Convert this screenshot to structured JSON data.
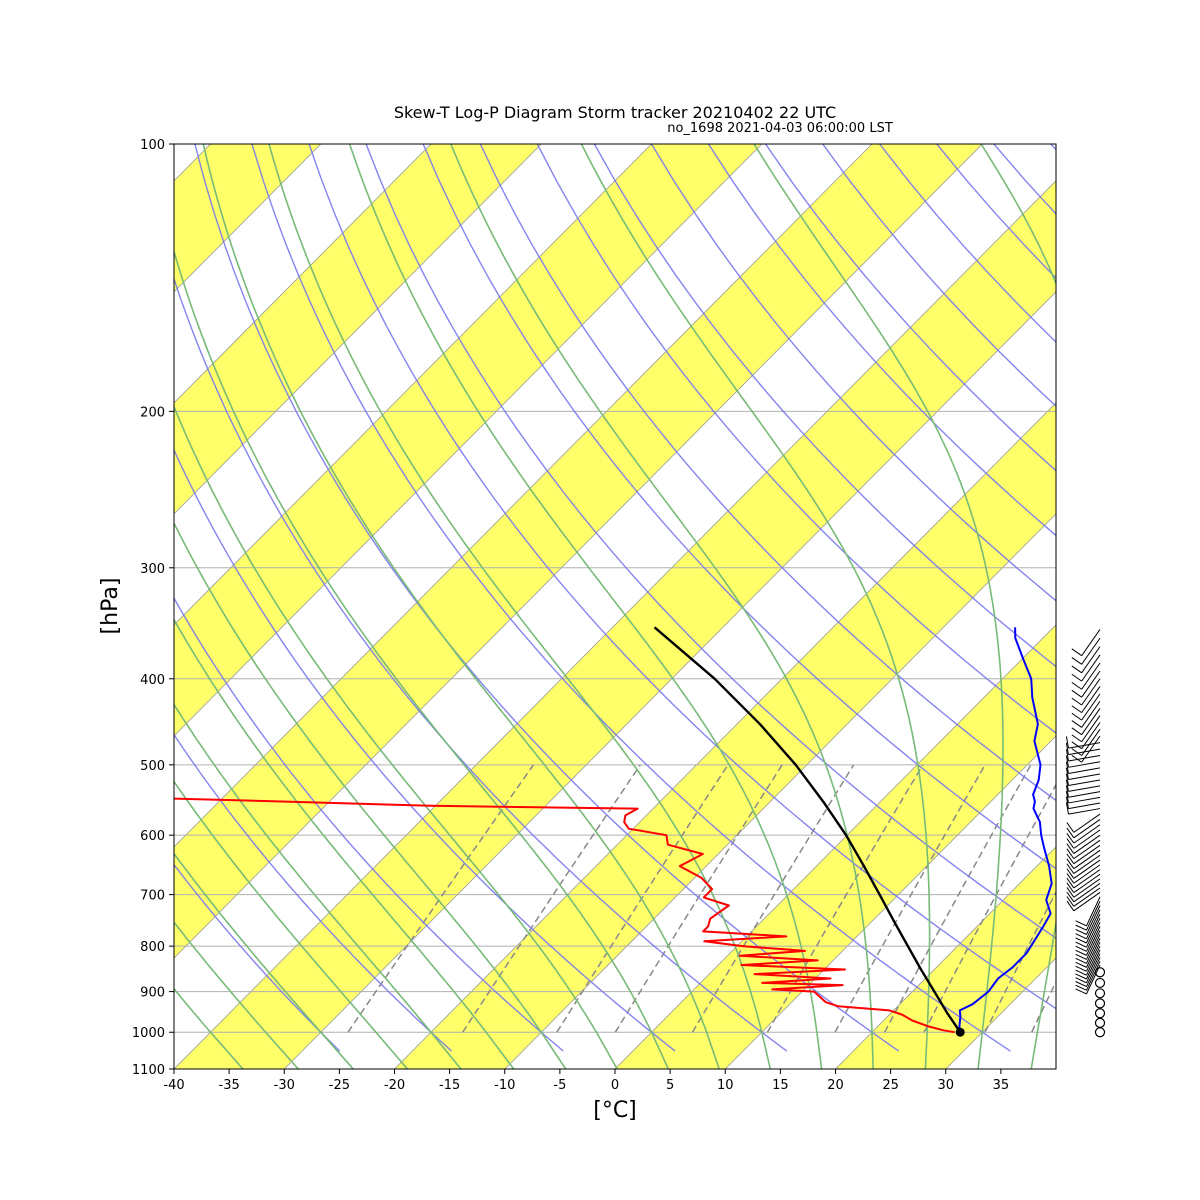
{
  "chart_data": {
    "type": "line",
    "title": "Skew-T Log-P Diagram Storm tracker 20210402 22 UTC",
    "subtitle": "no_1698 2021-04-03 06:00:00 LST",
    "xlabel": "[°C]",
    "ylabel": "[hPa]",
    "xlim": [
      -40,
      40
    ],
    "ylim": [
      1100,
      100
    ],
    "y_scale": "log",
    "skew_degrees_per_log10_pressure": 80,
    "grid": "horizontal at pressure ticks",
    "x_ticks": [
      "-40",
      "-35",
      "-30",
      "-25",
      "-20",
      "-15",
      "-10",
      "-5",
      "0",
      "5",
      "10",
      "15",
      "20",
      "25",
      "30",
      "35"
    ],
    "y_ticks": [
      "100",
      "200",
      "300",
      "400",
      "500",
      "600",
      "700",
      "800",
      "900",
      "1000",
      "1100"
    ],
    "background": {
      "isotherm_bands": "alternating 10 °C yellow shading",
      "dry_adiabats": "blue",
      "moist_adiabats": "green",
      "mixing_ratio_lines": "grey dashed below 500 hPa"
    },
    "colors": {
      "temperature": "#0000ff",
      "dewpoint": "#ff0000",
      "parcel": "#000000",
      "band": "#ffff44",
      "dry_adiabat": "#7777ee",
      "moist_adiabat": "#77bb77",
      "mixing_ratio": "#888888",
      "grid": "#b0b0b0"
    },
    "series": [
      {
        "key": "temperature",
        "p": [
          1000,
          985,
          960,
          945,
          930,
          900,
          870,
          845,
          815,
          790,
          760,
          735,
          710,
          680,
          650,
          620,
          600,
          580,
          560,
          550,
          540,
          520,
          500,
          470,
          450,
          420,
          400,
          380,
          360,
          350
        ],
        "t": [
          28.0,
          27.4,
          26.6,
          26.0,
          26.6,
          26.9,
          26.6,
          26.9,
          26.9,
          26.5,
          26.0,
          25.5,
          23.9,
          22.9,
          21.1,
          19.0,
          17.6,
          16.3,
          14.5,
          14.0,
          13.2,
          12.4,
          11.2,
          8.5,
          7.3,
          4.4,
          2.6,
          0.1,
          -2.5,
          -3.5
        ]
      },
      {
        "key": "dewpoint",
        "p": [
          1000,
          995,
          985,
          970,
          955,
          945,
          935,
          925,
          900,
          895,
          885,
          880,
          870,
          860,
          850,
          840,
          830,
          820,
          810,
          800,
          790,
          780,
          770,
          760,
          745,
          720,
          705,
          690,
          670,
          650,
          630,
          615,
          600,
          590,
          580,
          570,
          560,
          556,
          550,
          545,
          542,
          540,
          535,
          532,
          530,
          529,
          527
        ],
        "t": [
          27.5,
          26.3,
          24.6,
          22.6,
          21.1,
          19.6,
          14.6,
          13.1,
          11.1,
          7.1,
          13.1,
          5.6,
          11.4,
          4.1,
          11.9,
          2.1,
          8.6,
          1.1,
          6.6,
          0.6,
          -3.4,
          3.6,
          -4.4,
          -4.4,
          -4.9,
          -4.4,
          -7.4,
          -7.4,
          -9.4,
          -12.4,
          -11.4,
          -15.4,
          -16.4,
          -20.4,
          -21.4,
          -21.9,
          -21.4,
          -40.4,
          -53.9,
          -66.4,
          -68.4,
          -73.4,
          -79.9,
          -80.9,
          -81.9,
          -99.9,
          -109.9
        ]
      },
      {
        "key": "parcel",
        "p": [
          1000,
          950,
          900,
          850,
          800,
          750,
          700,
          650,
          600,
          550,
          500,
          450,
          400,
          350
        ],
        "t": [
          28.0,
          25.0,
          22.0,
          18.8,
          15.5,
          12.0,
          8.3,
          4.3,
          -0.1,
          -5.2,
          -11.0,
          -17.9,
          -26.1,
          -36.2
        ]
      }
    ],
    "surface_point": {
      "p": 1000,
      "t": 28.0
    },
    "wind_barbs": "column right of the plot, surface to ~350 hPa"
  }
}
